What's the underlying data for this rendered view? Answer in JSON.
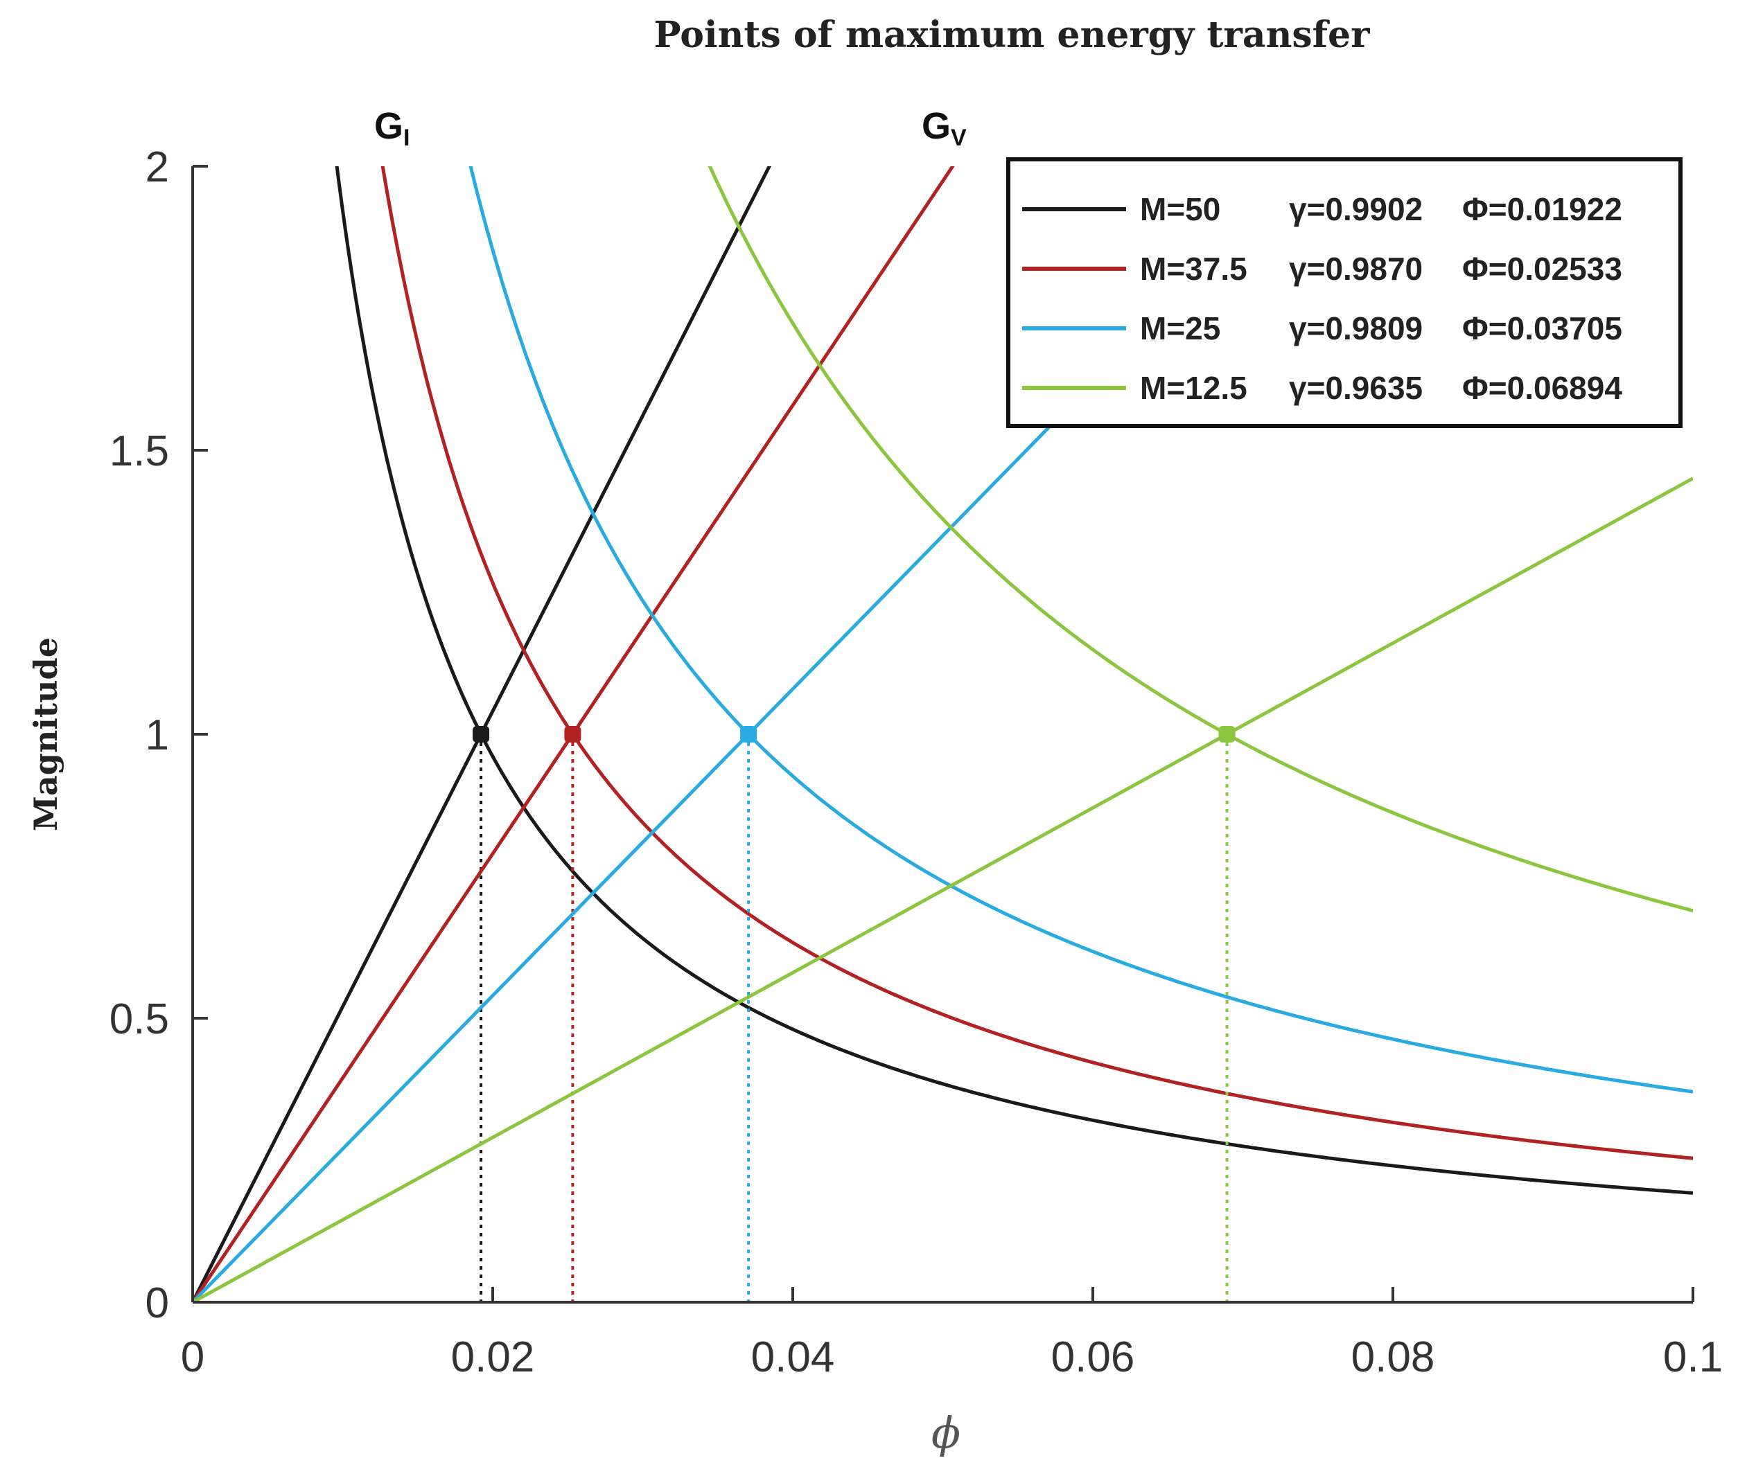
{
  "chart_data": {
    "type": "line",
    "title": "Points of maximum energy transfer",
    "xlabel": "ϕ",
    "ylabel": "Magnitude",
    "xlim": [
      0,
      0.1
    ],
    "ylim": [
      0,
      2
    ],
    "xticks": [
      0,
      0.02,
      0.04,
      0.06,
      0.08,
      0.1
    ],
    "yticks": [
      0,
      0.5,
      1,
      1.5,
      2
    ],
    "xtick_labels": [
      "0",
      "0.02",
      "0.04",
      "0.06",
      "0.08",
      "0.1"
    ],
    "ytick_labels": [
      "0",
      "0.5",
      "1",
      "1.5",
      "2"
    ],
    "legend_position": "top-right",
    "curve_labels": {
      "gi": {
        "main": "G",
        "sub": "I"
      },
      "gv": {
        "main": "G",
        "sub": "V"
      }
    },
    "series": [
      {
        "name": "M=50",
        "M": "M=50",
        "gamma": "γ=0.9902",
        "Phi": "Φ=0.01922",
        "phi": 0.01922,
        "color": "#1a1a1a"
      },
      {
        "name": "M=37.5",
        "M": "M=37.5",
        "gamma": "γ=0.9870",
        "Phi": "Φ=0.02533",
        "phi": 0.02533,
        "color": "#b22222"
      },
      {
        "name": "M=25",
        "M": "M=25",
        "gamma": "γ=0.9809",
        "Phi": "Φ=0.03705",
        "phi": 0.03705,
        "color": "#29abe2"
      },
      {
        "name": "M=12.5",
        "M": "M=12.5",
        "gamma": "γ=0.9635",
        "Phi": "Φ=0.06894",
        "phi": 0.06894,
        "color": "#8cc63f"
      }
    ],
    "curves": {
      "G_I": "G_I(ϕ) = Φ / ϕ",
      "G_V": "G_V(ϕ) = ϕ / Φ"
    },
    "intersection_points": [
      {
        "x": 0.01922,
        "y": 1
      },
      {
        "x": 0.02533,
        "y": 1
      },
      {
        "x": 0.03705,
        "y": 1
      },
      {
        "x": 0.06894,
        "y": 1
      }
    ]
  }
}
